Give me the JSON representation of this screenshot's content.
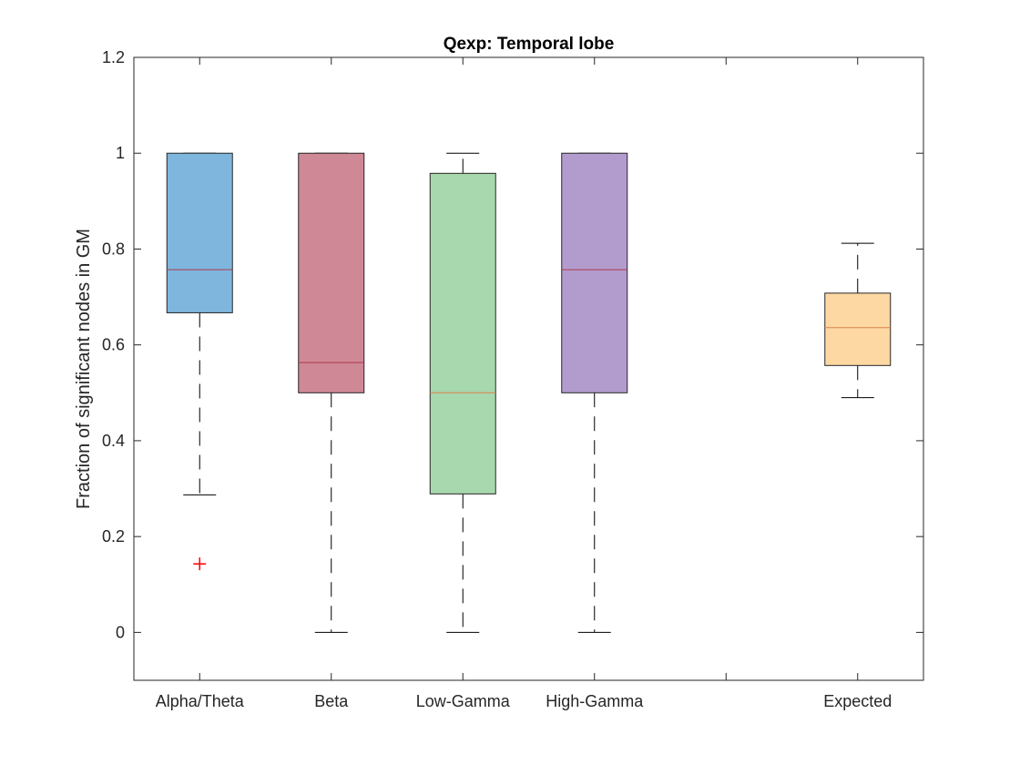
{
  "chart_data": {
    "type": "boxplot",
    "title": "Qexp: Temporal lobe",
    "xlabel": "",
    "ylabel": "Fraction of significant nodes in GM",
    "ylim": [
      -0.1,
      1.2
    ],
    "yticks": [
      "0",
      "0.2",
      "0.4",
      "0.6",
      "0.8",
      "1",
      "1.2"
    ],
    "grid": false,
    "slots": 6,
    "categories": [
      {
        "label": "Alpha/Theta",
        "slot": 1,
        "color": "#7eb6de",
        "median_color": "#b03a4a",
        "whisker_low": 0.287,
        "q1": 0.667,
        "median": 0.757,
        "q3": 1.0,
        "whisker_high": 1.0,
        "outliers": [
          0.143
        ]
      },
      {
        "label": "Beta",
        "slot": 2,
        "color": "#cf8896",
        "median_color": "#b03a4a",
        "whisker_low": 0.0,
        "q1": 0.5,
        "median": 0.563,
        "q3": 1.0,
        "whisker_high": 1.0,
        "outliers": []
      },
      {
        "label": "Low-Gamma",
        "slot": 3,
        "color": "#a8d8ad",
        "median_color": "#d9834a",
        "whisker_low": 0.0,
        "q1": 0.289,
        "median": 0.5,
        "q3": 0.958,
        "whisker_high": 1.0,
        "outliers": []
      },
      {
        "label": "High-Gamma",
        "slot": 4,
        "color": "#b29ccd",
        "median_color": "#b03a4a",
        "whisker_low": 0.0,
        "q1": 0.5,
        "median": 0.757,
        "q3": 1.0,
        "whisker_high": 1.0,
        "outliers": []
      },
      {
        "label": "",
        "slot": 5,
        "empty": true
      },
      {
        "label": "Expected",
        "slot": 6,
        "color": "#fed8a2",
        "median_color": "#d9834a",
        "whisker_low": 0.49,
        "q1": 0.557,
        "median": 0.636,
        "q3": 0.708,
        "whisker_high": 0.812,
        "outliers": []
      }
    ],
    "outlier_color": "#ff0000"
  }
}
